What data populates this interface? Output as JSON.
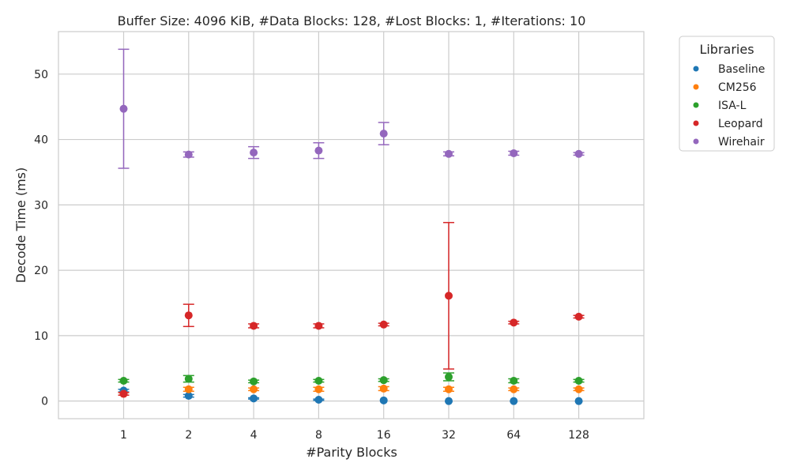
{
  "chart_data": {
    "type": "scatter",
    "title": "Buffer Size: 4096 KiB, #Data Blocks: 128, #Lost Blocks: 1, #Iterations: 10",
    "xlabel": "#Parity Blocks",
    "ylabel": "Decode Time (ms)",
    "categories": [
      "1",
      "2",
      "4",
      "8",
      "16",
      "32",
      "64",
      "128"
    ],
    "ylim": [
      -2.7,
      56.5
    ],
    "yticks": [
      0,
      10,
      20,
      30,
      40,
      50
    ],
    "grid": true,
    "legend": {
      "title": "Libraries",
      "placement": "outside-right"
    },
    "series": [
      {
        "name": "Baseline",
        "color": "#1f77b4",
        "values": [
          1.6,
          0.8,
          0.4,
          0.2,
          0.1,
          0.0,
          0.0,
          0.0
        ],
        "err": [
          0.2,
          0.2,
          0.1,
          0.1,
          0.0,
          0.0,
          0.0,
          0.0
        ]
      },
      {
        "name": "CM256",
        "color": "#ff7f0e",
        "values": [
          1.1,
          1.8,
          1.8,
          1.8,
          1.9,
          1.8,
          1.8,
          1.8
        ],
        "err": [
          0.2,
          0.3,
          0.2,
          0.3,
          0.3,
          0.3,
          0.2,
          0.2
        ]
      },
      {
        "name": "ISA-L",
        "color": "#2ca02c",
        "values": [
          3.1,
          3.4,
          3.0,
          3.1,
          3.2,
          3.7,
          3.1,
          3.1
        ],
        "err": [
          0.2,
          0.5,
          0.2,
          0.2,
          0.2,
          0.6,
          0.3,
          0.2
        ]
      },
      {
        "name": "Leopard",
        "color": "#d62728",
        "values": [
          1.1,
          13.1,
          11.5,
          11.5,
          11.7,
          16.1,
          12.0,
          12.9
        ],
        "err": [
          0.2,
          1.7,
          0.3,
          0.3,
          0.2,
          11.2,
          0.2,
          0.2
        ]
      },
      {
        "name": "Wirehair",
        "color": "#9467bd",
        "values": [
          44.7,
          37.7,
          38.0,
          38.3,
          40.9,
          37.8,
          37.9,
          37.8
        ],
        "err": [
          9.1,
          0.4,
          0.9,
          1.2,
          1.7,
          0.3,
          0.3,
          0.2
        ]
      }
    ]
  }
}
